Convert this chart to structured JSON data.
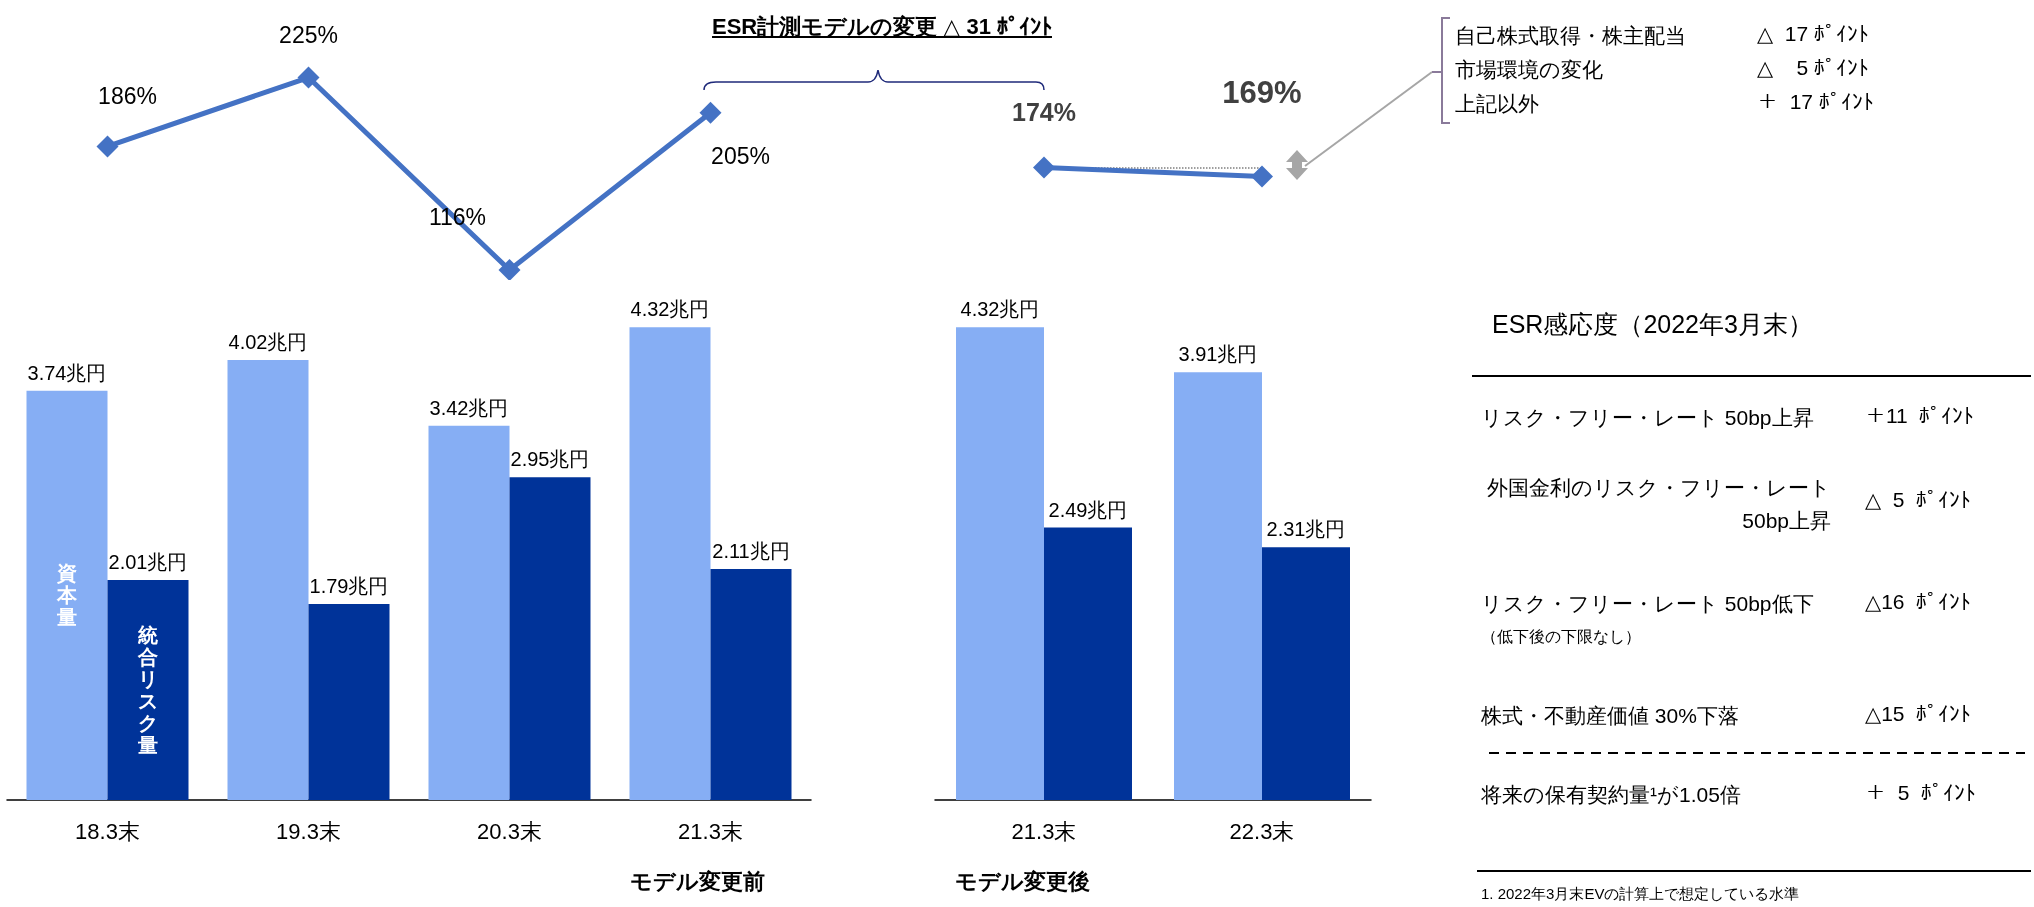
{
  "chart_data": [
    {
      "type": "bar",
      "categories": [
        "18.3末",
        "19.3末",
        "20.3末",
        "21.3末"
      ],
      "xlabel": "モデル変更前",
      "tick_labels": "x",
      "series": [
        {
          "name": "資本量",
          "color": "#86aef4",
          "values": [
            3.74,
            4.02,
            3.42,
            4.32
          ],
          "value_labels": [
            "3.74兆円",
            "4.02兆円",
            "3.42兆円",
            "4.32兆円"
          ]
        },
        {
          "name": "統合リスク量",
          "color": "#003399",
          "values": [
            2.01,
            1.79,
            2.95,
            2.11
          ],
          "value_labels": [
            "2.01兆円",
            "1.79兆円",
            "2.95兆円",
            "2.11兆円"
          ]
        }
      ]
    },
    {
      "type": "line",
      "categories": [
        null,
        null,
        null,
        null
      ],
      "tick_labels": false,
      "marker": "diamond",
      "annotations": [
        "ESR計測モデルの変更  △  31 ﾎﾟｲﾝﾄ"
      ],
      "series": [
        {
          "color": "#4472c4",
          "values": [
            186,
            225,
            116,
            205
          ],
          "value_labels": [
            "186%",
            "225%",
            "116%",
            "205%"
          ]
        }
      ]
    },
    {
      "type": "bar",
      "categories": [
        "21.3末",
        "22.3末"
      ],
      "xlabel": "モデル変更後",
      "tick_labels": "x",
      "series": [
        {
          "color": "#86aef4",
          "values": [
            4.32,
            3.91
          ],
          "value_labels": [
            "4.32兆円",
            "3.91兆円"
          ]
        },
        {
          "color": "#003399",
          "values": [
            2.49,
            2.31
          ],
          "value_labels": [
            "2.49兆円",
            "2.31兆円"
          ]
        }
      ]
    },
    {
      "type": "line",
      "categories": [
        null,
        null
      ],
      "tick_labels": false,
      "marker": "diamond",
      "annotations": [
        "自己株式取得・株主配当",
        "△  17 ﾎﾟｲﾝﾄ",
        "市場環境の変化",
        "△    5 ﾎﾟｲﾝﾄ",
        "上記以外",
        "＋  17 ﾎﾟｲﾝﾄ"
      ],
      "ref_lines": [
        {
          "axis": "y",
          "value": 174,
          "line_style": "dotted",
          "color": "#7f7f7f"
        }
      ],
      "series": [
        {
          "color": "#4472c4",
          "values": [
            174,
            169
          ],
          "value_labels": [
            "174%",
            "169%"
          ]
        }
      ]
    },
    {
      "type": "other",
      "title": "ESR感応度（2022年3月末）",
      "annotations": [
        "リスク・フリー・レート 50bp上昇",
        "＋11  ﾎﾟｲﾝﾄ",
        "外国金利のリスク・フリー・レート 50bp上昇",
        "△  5  ﾎﾟｲﾝﾄ",
        "リスク・フリー・レート 50bp低下",
        "△16  ﾎﾟｲﾝﾄ",
        "（低下後の下限なし）",
        "株式・不動産価値 30%下落",
        "△15  ﾎﾟｲﾝﾄ",
        "将来の保有契約量¹が1.05倍",
        "＋  5  ﾎﾟｲﾝﾄ",
        "1. 2022年3月末EVの計算上で想定している水準"
      ]
    }
  ]
}
